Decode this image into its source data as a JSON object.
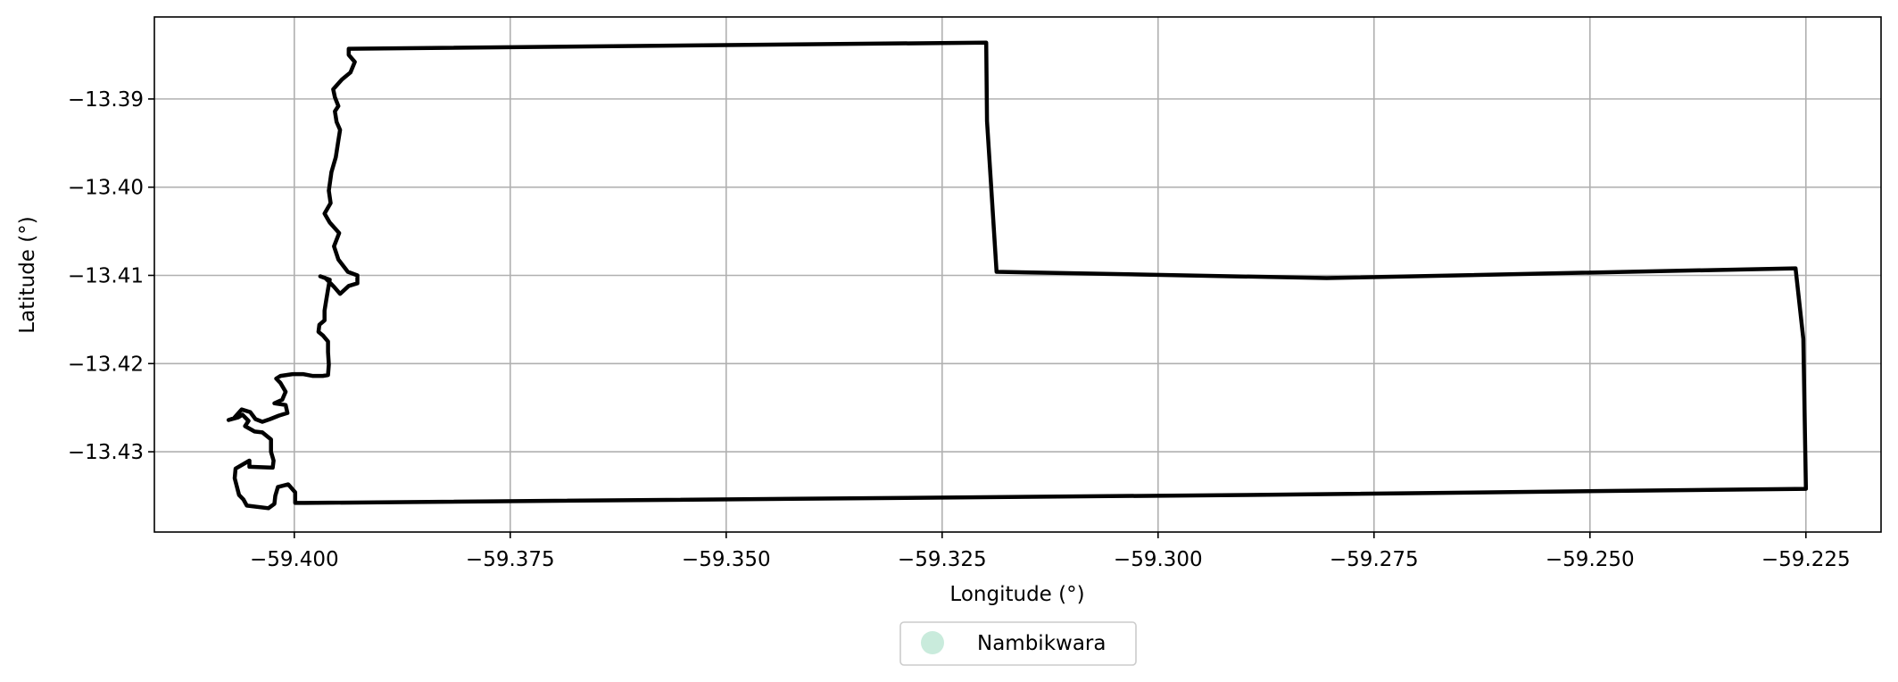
{
  "chart_data": {
    "type": "map",
    "xlabel": "Longitude (°)",
    "ylabel": "Latitude (°)",
    "xlim": [
      -59.4162,
      -59.2163
    ],
    "ylim": [
      -13.4391,
      -13.3807
    ],
    "x_ticks": [
      -59.4,
      -59.375,
      -59.35,
      -59.325,
      -59.3,
      -59.275,
      -59.25,
      -59.225
    ],
    "x_tick_labels": [
      "−59.400",
      "−59.375",
      "−59.350",
      "−59.325",
      "−59.300",
      "−59.275",
      "−59.250",
      "−59.225"
    ],
    "y_ticks": [
      -13.39,
      -13.4,
      -13.41,
      -13.42,
      -13.43
    ],
    "y_tick_labels": [
      "−13.39",
      "−13.40",
      "−13.41",
      "−13.42",
      "−13.43"
    ],
    "grid": true,
    "legend": {
      "placement": "bottom-center",
      "entries": [
        {
          "label": "Nambikwara",
          "color": "#c9ebdc"
        }
      ]
    },
    "boundary_color": "#000000",
    "boundary": [
      [
        -59.3936,
        -13.3843
      ],
      [
        -59.3199,
        -13.3836
      ],
      [
        -59.3198,
        -13.3925
      ],
      [
        -59.3187,
        -13.4096
      ],
      [
        -59.2805,
        -13.4103
      ],
      [
        -59.2262,
        -13.4092
      ],
      [
        -59.2253,
        -13.4172
      ],
      [
        -59.225,
        -13.4342
      ],
      [
        -59.2898,
        -13.4349
      ],
      [
        -59.3988,
        -13.4358
      ],
      [
        -59.3999,
        -13.4358
      ],
      [
        -59.3999,
        -13.4346
      ],
      [
        -59.4007,
        -13.4337
      ],
      [
        -59.4019,
        -13.434
      ],
      [
        -59.4022,
        -13.435
      ],
      [
        -59.4023,
        -13.4359
      ],
      [
        -59.403,
        -13.4364
      ],
      [
        -59.4055,
        -13.4361
      ],
      [
        -59.4059,
        -13.4354
      ],
      [
        -59.4064,
        -13.4349
      ],
      [
        -59.4069,
        -13.433
      ],
      [
        -59.4068,
        -13.4319
      ],
      [
        -59.4052,
        -13.431
      ],
      [
        -59.4052,
        -13.4317
      ],
      [
        -59.4025,
        -13.4318
      ],
      [
        -59.4024,
        -13.431
      ],
      [
        -59.4027,
        -13.43
      ],
      [
        -59.4027,
        -13.4286
      ],
      [
        -59.4037,
        -13.4278
      ],
      [
        -59.4046,
        -13.4277
      ],
      [
        -59.4057,
        -13.4271
      ],
      [
        -59.4053,
        -13.4265
      ],
      [
        -59.406,
        -13.4258
      ],
      [
        -59.4065,
        -13.4261
      ],
      [
        -59.4076,
        -13.4264
      ],
      [
        -59.407,
        -13.4262
      ],
      [
        -59.4061,
        -13.4252
      ],
      [
        -59.4051,
        -13.4255
      ],
      [
        -59.4045,
        -13.4263
      ],
      [
        -59.4037,
        -13.4266
      ],
      [
        -59.4028,
        -13.4263
      ],
      [
        -59.4018,
        -13.4259
      ],
      [
        -59.4008,
        -13.4256
      ],
      [
        -59.401,
        -13.4247
      ],
      [
        -59.4023,
        -13.4245
      ],
      [
        -59.4014,
        -13.4241
      ],
      [
        -59.401,
        -13.4232
      ],
      [
        -59.4016,
        -13.4222
      ],
      [
        -59.4021,
        -13.4217
      ],
      [
        -59.4016,
        -13.4214
      ],
      [
        -59.4002,
        -13.4212
      ],
      [
        -59.399,
        -13.4212
      ],
      [
        -59.3979,
        -13.4214
      ],
      [
        -59.3967,
        -13.4214
      ],
      [
        -59.3961,
        -13.4213
      ],
      [
        -59.396,
        -13.4201
      ],
      [
        -59.3961,
        -13.4187
      ],
      [
        -59.3961,
        -13.4175
      ],
      [
        -59.3967,
        -13.4168
      ],
      [
        -59.3972,
        -13.4164
      ],
      [
        -59.3971,
        -13.4156
      ],
      [
        -59.3965,
        -13.4151
      ],
      [
        -59.3965,
        -13.414
      ],
      [
        -59.3963,
        -13.4128
      ],
      [
        -59.3961,
        -13.4116
      ],
      [
        -59.3959,
        -13.4105
      ],
      [
        -59.397,
        -13.4101
      ],
      [
        -59.3964,
        -13.4103
      ],
      [
        -59.3954,
        -13.4113
      ],
      [
        -59.3947,
        -13.4121
      ],
      [
        -59.3937,
        -13.4112
      ],
      [
        -59.3927,
        -13.4109
      ],
      [
        -59.3927,
        -13.41
      ],
      [
        -59.3938,
        -13.4096
      ],
      [
        -59.3949,
        -13.4082
      ],
      [
        -59.3954,
        -13.4067
      ],
      [
        -59.3948,
        -13.4052
      ],
      [
        -59.3959,
        -13.404
      ],
      [
        -59.3965,
        -13.403
      ],
      [
        -59.3958,
        -13.4018
      ],
      [
        -59.396,
        -13.4004
      ],
      [
        -59.3957,
        -13.3983
      ],
      [
        -59.3952,
        -13.3966
      ],
      [
        -59.3949,
        -13.3947
      ],
      [
        -59.3947,
        -13.3935
      ],
      [
        -59.3951,
        -13.3926
      ],
      [
        -59.3953,
        -13.3914
      ],
      [
        -59.3949,
        -13.3908
      ],
      [
        -59.3953,
        -13.3898
      ],
      [
        -59.3955,
        -13.3889
      ],
      [
        -59.3945,
        -13.3878
      ],
      [
        -59.3935,
        -13.387
      ],
      [
        -59.393,
        -13.3858
      ],
      [
        -59.3937,
        -13.385
      ],
      [
        -59.3937,
        -13.3843
      ]
    ]
  }
}
